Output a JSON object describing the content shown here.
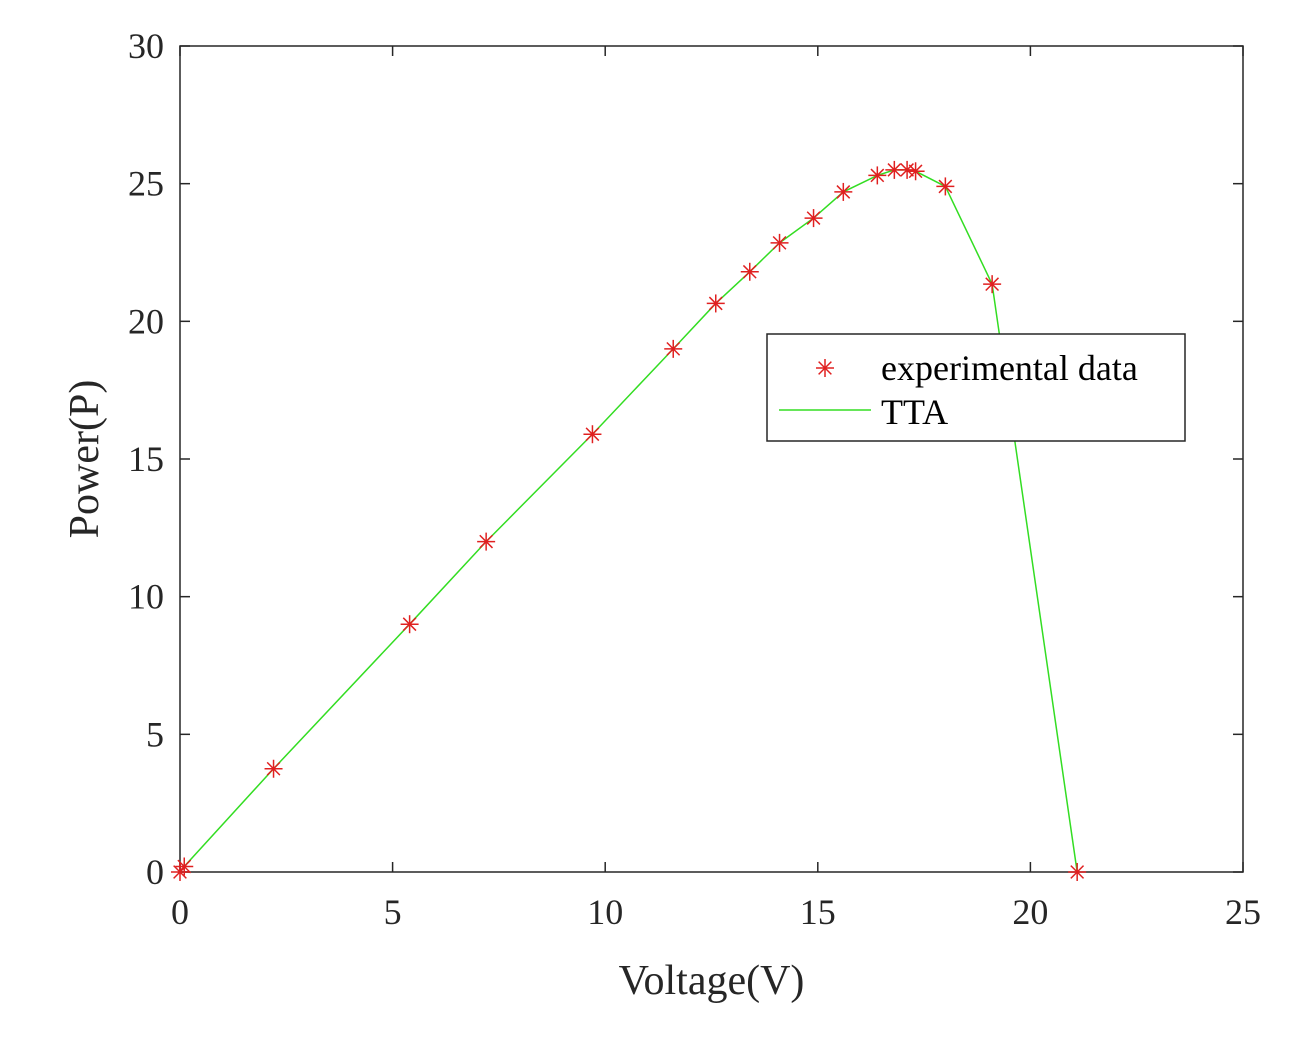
{
  "chart_data": {
    "type": "line",
    "title": "",
    "xlabel": "Voltage(V)",
    "ylabel": "Power(P)",
    "xlim": [
      0,
      25
    ],
    "ylim": [
      0,
      30
    ],
    "xticks": [
      0,
      5,
      10,
      15,
      20,
      25
    ],
    "yticks": [
      0,
      5,
      10,
      15,
      20,
      25,
      30
    ],
    "xtick_labels": [
      "0",
      "5",
      "10",
      "15",
      "20",
      "25"
    ],
    "ytick_labels": [
      "0",
      "5",
      "10",
      "15",
      "20",
      "25",
      "30"
    ],
    "grid": false,
    "legend_position": "right",
    "series": [
      {
        "name": "experimental data",
        "kind": "markers",
        "marker": "asterisk",
        "color": "#e02020",
        "x": [
          0.0,
          0.1,
          2.2,
          5.4,
          7.2,
          9.7,
          11.6,
          12.6,
          13.4,
          14.1,
          14.9,
          15.6,
          16.4,
          16.8,
          17.1,
          17.3,
          18.0,
          19.1,
          21.1
        ],
        "y": [
          0.0,
          0.2,
          3.75,
          9.0,
          12.0,
          15.9,
          19.0,
          20.65,
          21.8,
          22.85,
          23.75,
          24.7,
          25.3,
          25.5,
          25.5,
          25.45,
          24.9,
          21.35,
          0.0
        ]
      },
      {
        "name": "TTA",
        "kind": "line",
        "color": "#33dd22",
        "x": [
          0.0,
          0.1,
          2.2,
          5.4,
          7.2,
          9.7,
          11.6,
          12.6,
          13.4,
          14.1,
          14.9,
          15.6,
          16.4,
          16.8,
          17.1,
          17.3,
          18.0,
          19.1,
          21.1
        ],
        "y": [
          0.0,
          0.2,
          3.75,
          9.0,
          12.0,
          15.9,
          19.0,
          20.65,
          21.8,
          22.85,
          23.75,
          24.7,
          25.3,
          25.5,
          25.5,
          25.45,
          24.9,
          21.35,
          0.0
        ]
      }
    ]
  }
}
